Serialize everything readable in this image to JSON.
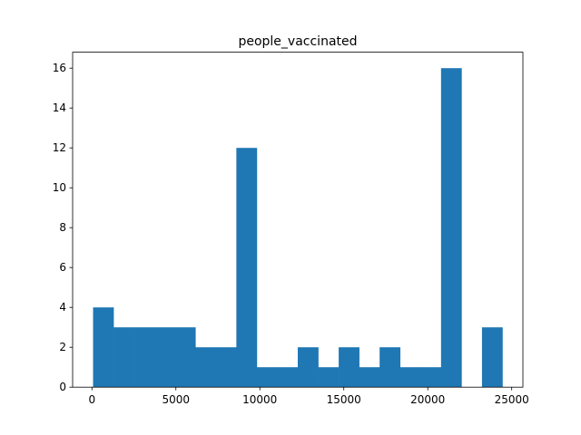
{
  "chart_data": {
    "type": "bar",
    "title": "people_vaccinated",
    "xlabel": "",
    "ylabel": "",
    "bar_color": "#1f77b4",
    "bins": [
      {
        "x0": 68,
        "x1": 1287,
        "count": 4
      },
      {
        "x0": 1287,
        "x1": 2506,
        "count": 3
      },
      {
        "x0": 2506,
        "x1": 3725,
        "count": 3
      },
      {
        "x0": 3725,
        "x1": 4944,
        "count": 3
      },
      {
        "x0": 4944,
        "x1": 6163,
        "count": 3
      },
      {
        "x0": 6163,
        "x1": 7382,
        "count": 2
      },
      {
        "x0": 7382,
        "x1": 8601,
        "count": 2
      },
      {
        "x0": 8601,
        "x1": 9820,
        "count": 12
      },
      {
        "x0": 9820,
        "x1": 11039,
        "count": 1
      },
      {
        "x0": 11039,
        "x1": 12258,
        "count": 1
      },
      {
        "x0": 12258,
        "x1": 13477,
        "count": 2
      },
      {
        "x0": 13477,
        "x1": 14696,
        "count": 1
      },
      {
        "x0": 14696,
        "x1": 15915,
        "count": 2
      },
      {
        "x0": 15915,
        "x1": 17134,
        "count": 1
      },
      {
        "x0": 17134,
        "x1": 18353,
        "count": 2
      },
      {
        "x0": 18353,
        "x1": 19572,
        "count": 1
      },
      {
        "x0": 19572,
        "x1": 20791,
        "count": 1
      },
      {
        "x0": 20791,
        "x1": 22010,
        "count": 16
      },
      {
        "x0": 22010,
        "x1": 23229,
        "count": 0
      },
      {
        "x0": 23229,
        "x1": 24448,
        "count": 3
      }
    ],
    "xlim": [
      -1150,
      25666
    ],
    "ylim": [
      0,
      16.8
    ],
    "xticks": [
      0,
      5000,
      10000,
      15000,
      20000,
      25000
    ],
    "xtick_labels": [
      "0",
      "5000",
      "10000",
      "15000",
      "20000",
      "25000"
    ],
    "yticks": [
      0,
      2,
      4,
      6,
      8,
      10,
      12,
      14,
      16
    ],
    "ytick_labels": [
      "0",
      "2",
      "4",
      "6",
      "8",
      "10",
      "12",
      "14",
      "16"
    ],
    "grid": false,
    "legend": "none"
  }
}
